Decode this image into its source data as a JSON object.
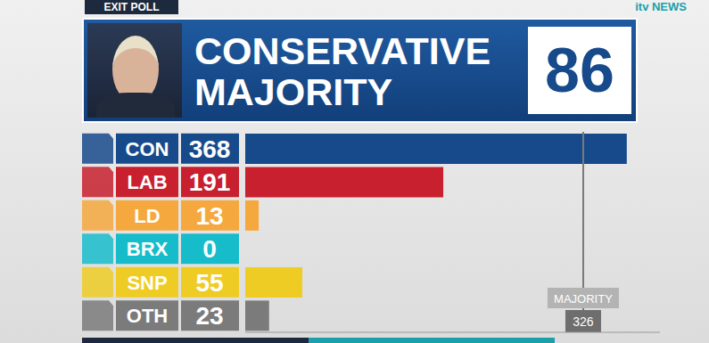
{
  "chart_data": {
    "type": "bar",
    "orientation": "horizontal",
    "subtitle": "EXIT POLL",
    "source": "itv NEWS",
    "title": "CONSERVATIVE MAJORITY",
    "title_value": 86,
    "categories": [
      "CON",
      "LAB",
      "LD",
      "BRX",
      "SNP",
      "OTH"
    ],
    "values": [
      368,
      191,
      13,
      0,
      55,
      23
    ],
    "colors": [
      "#174a8b",
      "#c8202f",
      "#f5a83e",
      "#17bccb",
      "#efcc24",
      "#7b7b7b"
    ],
    "xlim": [
      0,
      400
    ],
    "tick_labels": false,
    "data_labels": true,
    "reference_line": {
      "label": "MAJORITY",
      "value": 326
    }
  }
}
